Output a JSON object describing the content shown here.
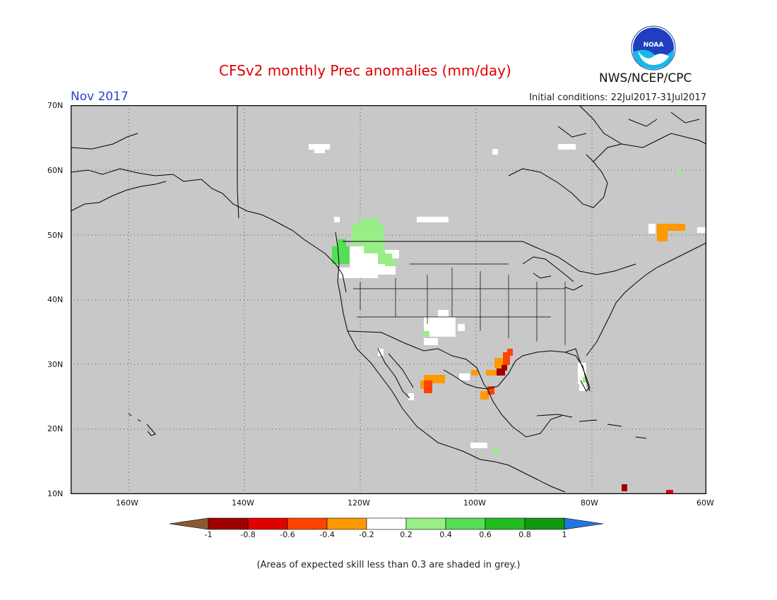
{
  "title": "CFSv2 monthly Prec anomalies (mm/day)",
  "month": "Nov 2017",
  "initial_conditions": "Initial conditions: 22Jul2017-31Jul2017",
  "organization": "NWS/NCEP/CPC",
  "logo_text": "NOAA",
  "footnote": "(Areas of expected skill less than 0.3 are shaded in grey.)",
  "lat_labels": [
    "70N",
    "60N",
    "50N",
    "40N",
    "30N",
    "20N",
    "10N"
  ],
  "lon_labels": [
    "160W",
    "140W",
    "120W",
    "100W",
    "80W",
    "60W"
  ],
  "colorbar": {
    "ticks": [
      "-1",
      "-0.8",
      "-0.6",
      "-0.4",
      "-0.2",
      "0.2",
      "0.4",
      "0.6",
      "0.8",
      "1"
    ],
    "colors": [
      "#8a5a32",
      "#a00000",
      "#e00000",
      "#ff4400",
      "#ff9900",
      "#ffffff",
      "#99ee88",
      "#55dd55",
      "#22bb22",
      "#119911",
      "#2277dd"
    ]
  },
  "colors": {
    "land_grey": "#c8c8c8",
    "title_red": "#e00000",
    "month_blue": "#2a3fd0"
  }
}
